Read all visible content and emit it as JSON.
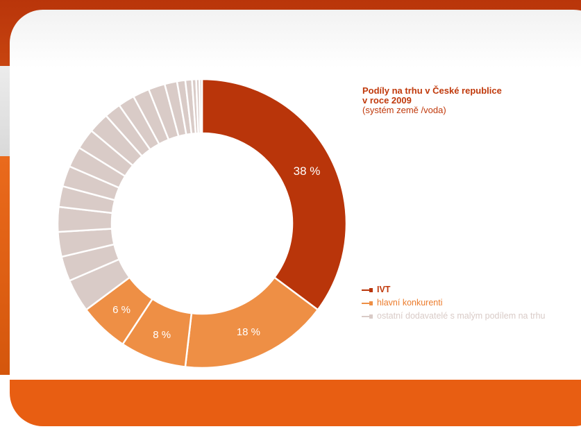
{
  "chart_data": {
    "type": "pie",
    "title": "Podíly na trhu v České republice",
    "title_line2": "v roce 2009",
    "subtitle": "(systém země /voda)",
    "slices": [
      {
        "value": 38,
        "label": "38 %",
        "group": "IVT",
        "color": "#b9350a"
      },
      {
        "value": 18,
        "label": "18 %",
        "group": "hlavní konkurenti",
        "color": "#ee8f45"
      },
      {
        "value": 8,
        "label": "8 %",
        "group": "hlavní konkurenti",
        "color": "#ee8f45"
      },
      {
        "value": 6,
        "label": "6 %",
        "group": "hlavní konkurenti",
        "color": "#ee8f45"
      },
      {
        "value": 4,
        "label": "",
        "group": "ostatní dodavatelé s malým podílem na trhu",
        "color": "#d9cbc7"
      },
      {
        "value": 3,
        "label": "",
        "group": "ostatní dodavatelé s malým podílem na trhu",
        "color": "#d9cbc7"
      },
      {
        "value": 3,
        "label": "",
        "group": "ostatní dodavatelé s malým podílem na trhu",
        "color": "#d9cbc7"
      },
      {
        "value": 3,
        "label": "",
        "group": "ostatní dodavatelé s malým podílem na trhu",
        "color": "#d9cbc7"
      },
      {
        "value": 2.5,
        "label": "",
        "group": "ostatní dodavatelé s malým podílem na trhu",
        "color": "#d9cbc7"
      },
      {
        "value": 2.5,
        "label": "",
        "group": "ostatní dodavatelé s malým podílem na trhu",
        "color": "#d9cbc7"
      },
      {
        "value": 2.5,
        "label": "",
        "group": "ostatní dodavatelé s malým podílem na trhu",
        "color": "#d9cbc7"
      },
      {
        "value": 2.5,
        "label": "",
        "group": "ostatní dodavatelé s malým podílem na trhu",
        "color": "#d9cbc7"
      },
      {
        "value": 2.5,
        "label": "",
        "group": "ostatní dodavatelé s malým podílem na trhu",
        "color": "#d9cbc7"
      },
      {
        "value": 2,
        "label": "",
        "group": "ostatní dodavatelé s malým podílem na trhu",
        "color": "#d9cbc7"
      },
      {
        "value": 2,
        "label": "",
        "group": "ostatní dodavatelé s malým podílem na trhu",
        "color": "#d9cbc7"
      },
      {
        "value": 2,
        "label": "",
        "group": "ostatní dodavatelé s malým podílem na trhu",
        "color": "#d9cbc7"
      },
      {
        "value": 2,
        "label": "",
        "group": "ostatní dodavatelé s malým podílem na trhu",
        "color": "#d9cbc7"
      },
      {
        "value": 1.5,
        "label": "",
        "group": "ostatní dodavatelé s malým podílem na trhu",
        "color": "#d9cbc7"
      },
      {
        "value": 1,
        "label": "",
        "group": "ostatní dodavatelé s malým podílem na trhu",
        "color": "#d9cbc7"
      },
      {
        "value": 0.8,
        "label": "",
        "group": "ostatní dodavatelé s malým podílem na trhu",
        "color": "#d9cbc7"
      },
      {
        "value": 0.5,
        "label": "",
        "group": "ostatní dodavatelé s malým podílem na trhu",
        "color": "#d9cbc7"
      },
      {
        "value": 0.4,
        "label": "",
        "group": "ostatní dodavatelé s malým podílem na trhu",
        "color": "#d9cbc7"
      },
      {
        "value": 0.3,
        "label": "",
        "group": "ostatní dodavatelé s malým podílem na trhu",
        "color": "#d9cbc7"
      }
    ],
    "legend": [
      {
        "label": "IVT",
        "color": "#b9350a",
        "text_color": "#c0390b",
        "bold": true
      },
      {
        "label": "hlavní konkurenti",
        "color": "#ee8f45",
        "text_color": "#ec7c2c",
        "bold": false
      },
      {
        "label": "ostatní dodavatelé s malým podílem na trhu",
        "color": "#d9cbc7",
        "text_color": "#d9cbc7",
        "bold": false
      }
    ],
    "legend_position": "right",
    "label_colors": {
      "dark_slice": "#ffffff",
      "light_slice": "#ffffff"
    }
  },
  "theme": {
    "accent": "#b9350a",
    "secondary": "#ee8f45",
    "muted": "#d9cbc7",
    "footer": "#e85e12"
  }
}
